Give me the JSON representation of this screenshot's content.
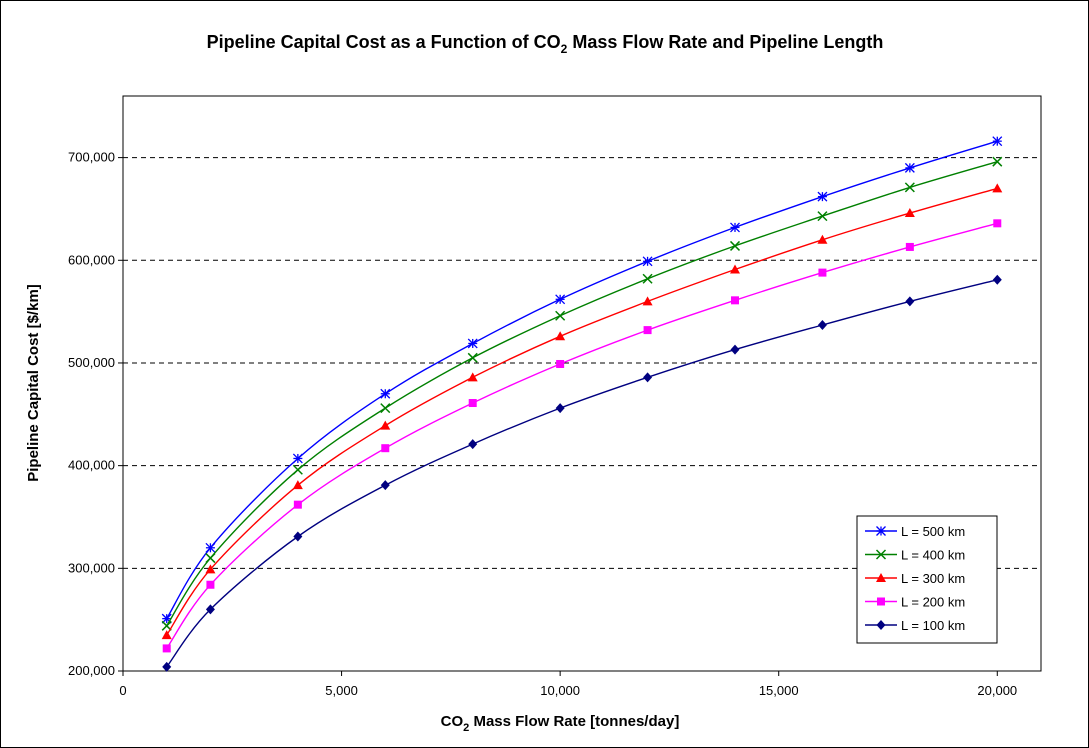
{
  "chart_data": {
    "type": "line",
    "title": "Pipeline Capital Cost as a Function of CO",
    "title_sub": "2",
    "title_rest": " Mass Flow Rate and Pipeline Length",
    "xlabel": "CO",
    "xlabel_sub": "2",
    "xlabel_rest": " Mass Flow Rate [tonnes/day]",
    "ylabel": "Pipeline Capital Cost [$/km]",
    "xlim": [
      0,
      21000
    ],
    "ylim": [
      200000,
      760000
    ],
    "x_ticks": [
      0,
      5000,
      10000,
      15000,
      20000
    ],
    "x_tick_labels": [
      "0",
      "5,000",
      "10,000",
      "15,000",
      "20,000"
    ],
    "y_ticks": [
      200000,
      300000,
      400000,
      500000,
      600000,
      700000
    ],
    "y_tick_labels": [
      "200,000",
      "300,000",
      "400,000",
      "500,000",
      "600,000",
      "700,000"
    ],
    "grid": "horizontal dashed",
    "legend_position": "lower-right",
    "x": [
      1000,
      2000,
      4000,
      6000,
      8000,
      10000,
      12000,
      14000,
      16000,
      18000,
      20000
    ],
    "series": [
      {
        "name": "L = 500 km",
        "color": "#0000ff",
        "marker": "star",
        "values": [
          251000,
          320000,
          407000,
          470000,
          519000,
          562000,
          599000,
          632000,
          662000,
          690000,
          716000
        ]
      },
      {
        "name": "L = 400 km",
        "color": "#008000",
        "marker": "x",
        "values": [
          244000,
          310000,
          396000,
          456000,
          505000,
          546000,
          582000,
          614000,
          643000,
          671000,
          696000
        ]
      },
      {
        "name": "L = 300 km",
        "color": "#ff0000",
        "marker": "triangle",
        "values": [
          235000,
          299000,
          381000,
          439000,
          486000,
          526000,
          560000,
          591000,
          620000,
          646000,
          670000
        ]
      },
      {
        "name": "L = 200 km",
        "color": "#ff00ff",
        "marker": "square",
        "values": [
          222000,
          284000,
          362000,
          417000,
          461000,
          499000,
          532000,
          561000,
          588000,
          613000,
          636000
        ]
      },
      {
        "name": "L = 100 km",
        "color": "#000080",
        "marker": "diamond",
        "values": [
          204000,
          260000,
          331000,
          381000,
          421000,
          456000,
          486000,
          513000,
          537000,
          560000,
          581000
        ]
      }
    ]
  }
}
